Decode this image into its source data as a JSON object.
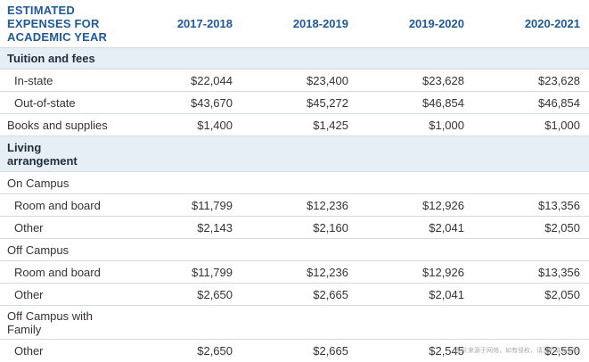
{
  "header": {
    "title_lines": [
      "ESTIMATED",
      "EXPENSES FOR",
      "ACADEMIC YEAR"
    ],
    "years": [
      "2017-2018",
      "2018-2019",
      "2019-2020",
      "2020-2021"
    ]
  },
  "rows": [
    {
      "label": "Tuition and fees",
      "values": [
        "",
        "",
        "",
        ""
      ]
    },
    {
      "label": "In-state",
      "values": [
        "$22,044",
        "$23,400",
        "$23,628",
        "$23,628"
      ]
    },
    {
      "label": "Out-of-state",
      "values": [
        "$43,670",
        "$45,272",
        "$46,854",
        "$46,854"
      ]
    },
    {
      "label": "Books and supplies",
      "values": [
        "$1,400",
        "$1,425",
        "$1,000",
        "$1,000"
      ]
    },
    {
      "label_lines": [
        "Living",
        "arrangement"
      ],
      "values": [
        "",
        "",
        "",
        ""
      ]
    },
    {
      "label": "On Campus",
      "values": [
        "",
        "",
        "",
        ""
      ]
    },
    {
      "label": "Room and board",
      "values": [
        "$11,799",
        "$12,236",
        "$12,926",
        "$13,356"
      ]
    },
    {
      "label": "Other",
      "values": [
        "$2,143",
        "$2,160",
        "$2,041",
        "$2,050"
      ]
    },
    {
      "label": "Off Campus",
      "values": [
        "",
        "",
        "",
        ""
      ]
    },
    {
      "label": "Room and board",
      "values": [
        "$11,799",
        "$12,236",
        "$12,926",
        "$13,356"
      ]
    },
    {
      "label": "Other",
      "values": [
        "$2,650",
        "$2,665",
        "$2,041",
        "$2,050"
      ]
    },
    {
      "label_lines": [
        "Off Campus with",
        "Family"
      ],
      "values": [
        "",
        "",
        "",
        ""
      ]
    },
    {
      "label": "Other",
      "values": [
        "$2,650",
        "$2,665",
        "$2,545",
        "$2,550"
      ]
    }
  ],
  "watermark": "图片来源于网络，如有侵权，请及时联系删除",
  "colors": {
    "header_text": "#1f5a96",
    "section_bg": "#e6eef6",
    "border": "#d3dde8"
  }
}
